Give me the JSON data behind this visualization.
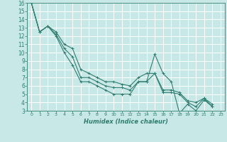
{
  "xlabel": "Humidex (Indice chaleur)",
  "background_color": "#c8e8e8",
  "xaxis_bar_color": "#a8c8c8",
  "grid_color": "#ffffff",
  "line_color": "#2e7d6e",
  "marker": "+",
  "xlim": [
    -0.5,
    23.5
  ],
  "ylim": [
    3,
    16
  ],
  "xticks": [
    0,
    1,
    2,
    3,
    4,
    5,
    6,
    7,
    8,
    9,
    10,
    11,
    12,
    13,
    14,
    15,
    16,
    17,
    18,
    19,
    20,
    21,
    22,
    23
  ],
  "yticks": [
    3,
    4,
    5,
    6,
    7,
    8,
    9,
    10,
    11,
    12,
    13,
    14,
    15,
    16
  ],
  "series": [
    {
      "x": [
        0,
        1,
        2,
        3,
        4,
        5,
        6,
        7,
        8,
        9,
        10,
        11,
        12,
        13,
        14,
        15,
        16,
        17,
        18,
        19,
        20,
        21,
        22
      ],
      "y": [
        16,
        12.5,
        13.2,
        12.0,
        10.0,
        8.5,
        6.5,
        6.5,
        6.0,
        5.5,
        5.0,
        5.0,
        5.0,
        6.5,
        6.5,
        9.8,
        7.5,
        6.5,
        2.7,
        3.8,
        3.0,
        4.3,
        3.5
      ]
    },
    {
      "x": [
        0,
        1,
        2,
        3,
        4,
        5,
        6,
        7,
        8,
        9,
        10,
        11,
        12,
        13,
        14,
        15,
        16,
        17,
        18,
        19,
        20,
        21,
        22
      ],
      "y": [
        16,
        12.5,
        13.2,
        12.2,
        10.5,
        9.5,
        7.0,
        7.0,
        6.5,
        6.0,
        5.8,
        5.8,
        5.5,
        6.5,
        6.5,
        7.5,
        5.2,
        5.2,
        5.0,
        4.0,
        3.5,
        4.5,
        3.5
      ]
    },
    {
      "x": [
        0,
        1,
        2,
        3,
        4,
        5,
        6,
        7,
        8,
        9,
        10,
        11,
        12,
        13,
        14,
        15,
        16,
        17,
        18,
        19,
        20,
        21,
        22
      ],
      "y": [
        16,
        12.5,
        13.2,
        12.5,
        11.0,
        10.5,
        8.0,
        7.5,
        7.0,
        6.5,
        6.5,
        6.2,
        6.0,
        7.0,
        7.5,
        7.5,
        5.5,
        5.5,
        5.2,
        4.2,
        4.0,
        4.5,
        3.8
      ]
    }
  ]
}
